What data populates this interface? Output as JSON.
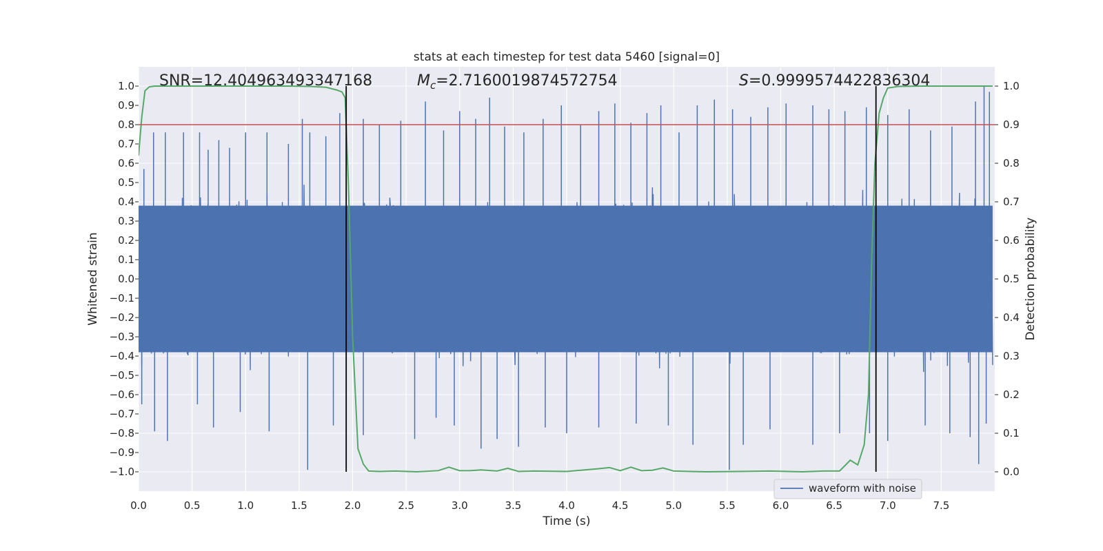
{
  "chart_data": {
    "type": "line",
    "title": "stats at each timestep for test data 5460 [signal=0]",
    "xlabel": "Time (s)",
    "ylabel": "Whitened strain",
    "y2label": "Detection probability",
    "xlim": [
      0.0,
      8.0
    ],
    "ylim": [
      -1.1,
      1.1
    ],
    "y2lim": [
      -0.05,
      1.05
    ],
    "xticks": [
      "0.0",
      "0.5",
      "1.0",
      "1.5",
      "2.0",
      "2.5",
      "3.0",
      "3.5",
      "4.0",
      "4.5",
      "5.0",
      "5.5",
      "6.0",
      "6.5",
      "7.0",
      "7.5"
    ],
    "yticks": [
      "1.0",
      "0.9",
      "0.8",
      "0.7",
      "0.6",
      "0.5",
      "0.4",
      "0.3",
      "0.2",
      "0.1",
      "0.0",
      "−0.1",
      "−0.2",
      "−0.3",
      "−0.4",
      "−0.5",
      "−0.6",
      "−0.7",
      "−0.8",
      "−0.9",
      "−1.0"
    ],
    "y2ticks": [
      "1.0",
      "0.9",
      "0.8",
      "0.7",
      "0.6",
      "0.5",
      "0.4",
      "0.3",
      "0.2",
      "0.1",
      "0.0"
    ],
    "grid": true,
    "legend": {
      "position": "lower-right",
      "entries": [
        "waveform with noise"
      ]
    },
    "annotations": {
      "snr": "SNR=12.404963493347168",
      "mc_symbol": "M",
      "mc_sub": "c",
      "mc_value": "=2.7160019874572754",
      "s_symbol": "S",
      "s_value": "=0.9999574422836304"
    },
    "threshold": {
      "axis": "y2",
      "value": 0.9,
      "color": "#c44e52"
    },
    "vlines": [
      1.94,
      6.89
    ],
    "series": [
      {
        "name": "waveform with noise",
        "axis": "y",
        "color": "#4c72b0",
        "kind": "noise",
        "description_values": {
          "core_amplitude": 0.4,
          "peak_max": 1.0,
          "peak_min": -1.0
        },
        "peaks_up": [
          [
            0.05,
            0.57
          ],
          [
            0.14,
            0.76
          ],
          [
            0.25,
            0.76
          ],
          [
            0.42,
            0.76
          ],
          [
            0.57,
            0.76
          ],
          [
            0.65,
            0.67
          ],
          [
            0.75,
            0.72
          ],
          [
            0.85,
            0.68
          ],
          [
            1.0,
            0.76
          ],
          [
            1.2,
            0.76
          ],
          [
            1.4,
            0.7
          ],
          [
            1.53,
            0.83
          ],
          [
            1.6,
            0.76
          ],
          [
            1.75,
            0.74
          ],
          [
            1.88,
            0.86
          ],
          [
            2.1,
            0.83
          ],
          [
            2.25,
            0.8
          ],
          [
            2.45,
            0.82
          ],
          [
            2.68,
            0.92
          ],
          [
            2.85,
            0.77
          ],
          [
            3.0,
            0.87
          ],
          [
            3.15,
            0.83
          ],
          [
            3.28,
            0.94
          ],
          [
            3.42,
            0.79
          ],
          [
            3.6,
            0.76
          ],
          [
            3.78,
            0.83
          ],
          [
            3.95,
            0.9
          ],
          [
            4.13,
            0.8
          ],
          [
            4.3,
            0.87
          ],
          [
            4.45,
            0.91
          ],
          [
            4.6,
            0.81
          ],
          [
            4.75,
            0.86
          ],
          [
            4.88,
            0.9
          ],
          [
            5.05,
            0.76
          ],
          [
            5.22,
            0.9
          ],
          [
            5.38,
            0.93
          ],
          [
            5.55,
            0.88
          ],
          [
            5.72,
            0.84
          ],
          [
            5.88,
            0.89
          ],
          [
            6.05,
            0.91
          ],
          [
            6.3,
            0.9
          ],
          [
            6.45,
            0.88
          ],
          [
            6.6,
            0.87
          ],
          [
            6.8,
            0.89
          ],
          [
            7.0,
            0.85
          ],
          [
            7.2,
            0.88
          ],
          [
            7.4,
            0.77
          ],
          [
            7.6,
            0.79
          ],
          [
            7.82,
            0.92
          ],
          [
            7.9,
            1.0
          ],
          [
            7.95,
            0.97
          ]
        ],
        "peaks_down": [
          [
            0.03,
            -0.65
          ],
          [
            0.15,
            -0.79
          ],
          [
            0.27,
            -0.84
          ],
          [
            0.55,
            -0.65
          ],
          [
            0.7,
            -0.77
          ],
          [
            0.95,
            -0.69
          ],
          [
            1.22,
            -0.79
          ],
          [
            1.58,
            -0.99
          ],
          [
            1.82,
            -0.76
          ],
          [
            2.1,
            -0.81
          ],
          [
            2.58,
            -0.83
          ],
          [
            2.78,
            -0.72
          ],
          [
            2.95,
            -0.76
          ],
          [
            3.2,
            -0.88
          ],
          [
            3.35,
            -0.83
          ],
          [
            3.55,
            -0.87
          ],
          [
            3.8,
            -0.77
          ],
          [
            4.0,
            -0.8
          ],
          [
            4.3,
            -0.77
          ],
          [
            4.65,
            -0.75
          ],
          [
            4.95,
            -0.76
          ],
          [
            5.18,
            -0.86
          ],
          [
            5.52,
            -0.99
          ],
          [
            5.65,
            -0.86
          ],
          [
            5.9,
            -0.78
          ],
          [
            6.3,
            -0.86
          ],
          [
            6.55,
            -0.8
          ],
          [
            6.83,
            -0.8
          ],
          [
            7.0,
            -0.84
          ],
          [
            7.35,
            -0.76
          ],
          [
            7.58,
            -0.8
          ],
          [
            7.77,
            -0.82
          ],
          [
            7.85,
            -0.96
          ],
          [
            7.92,
            -0.75
          ]
        ]
      },
      {
        "name": "",
        "axis": "y2",
        "color": "#55a868",
        "x": [
          0.0,
          0.03,
          0.06,
          0.1,
          0.15,
          0.3,
          0.6,
          1.0,
          1.4,
          1.6,
          1.75,
          1.85,
          1.9,
          1.93,
          1.96,
          2.0,
          2.05,
          2.1,
          2.15,
          2.25,
          2.4,
          2.6,
          2.8,
          2.9,
          3.0,
          3.1,
          3.2,
          3.35,
          3.45,
          3.55,
          3.7,
          4.0,
          4.3,
          4.4,
          4.5,
          4.6,
          4.7,
          4.8,
          4.9,
          5.0,
          5.3,
          5.6,
          5.9,
          6.2,
          6.4,
          6.55,
          6.65,
          6.72,
          6.78,
          6.82,
          6.85,
          6.88,
          6.92,
          6.96,
          7.0,
          7.1,
          7.3,
          7.5,
          7.7,
          7.9,
          7.98
        ],
        "y": [
          0.82,
          0.92,
          0.988,
          0.998,
          1.0,
          1.0,
          1.0,
          1.0,
          1.0,
          0.999,
          0.997,
          0.99,
          0.985,
          0.97,
          0.75,
          0.35,
          0.06,
          0.02,
          0.002,
          0.001,
          0.002,
          0.0,
          0.003,
          0.012,
          0.003,
          0.003,
          0.005,
          0.002,
          0.009,
          0.001,
          0.002,
          0.001,
          0.008,
          0.011,
          0.003,
          0.012,
          0.003,
          0.004,
          0.01,
          0.002,
          0.0,
          0.001,
          0.002,
          0.0,
          0.002,
          0.002,
          0.03,
          0.018,
          0.07,
          0.2,
          0.55,
          0.8,
          0.93,
          0.97,
          0.995,
          0.999,
          1.0,
          1.0,
          1.0,
          1.0,
          1.0
        ]
      }
    ]
  }
}
